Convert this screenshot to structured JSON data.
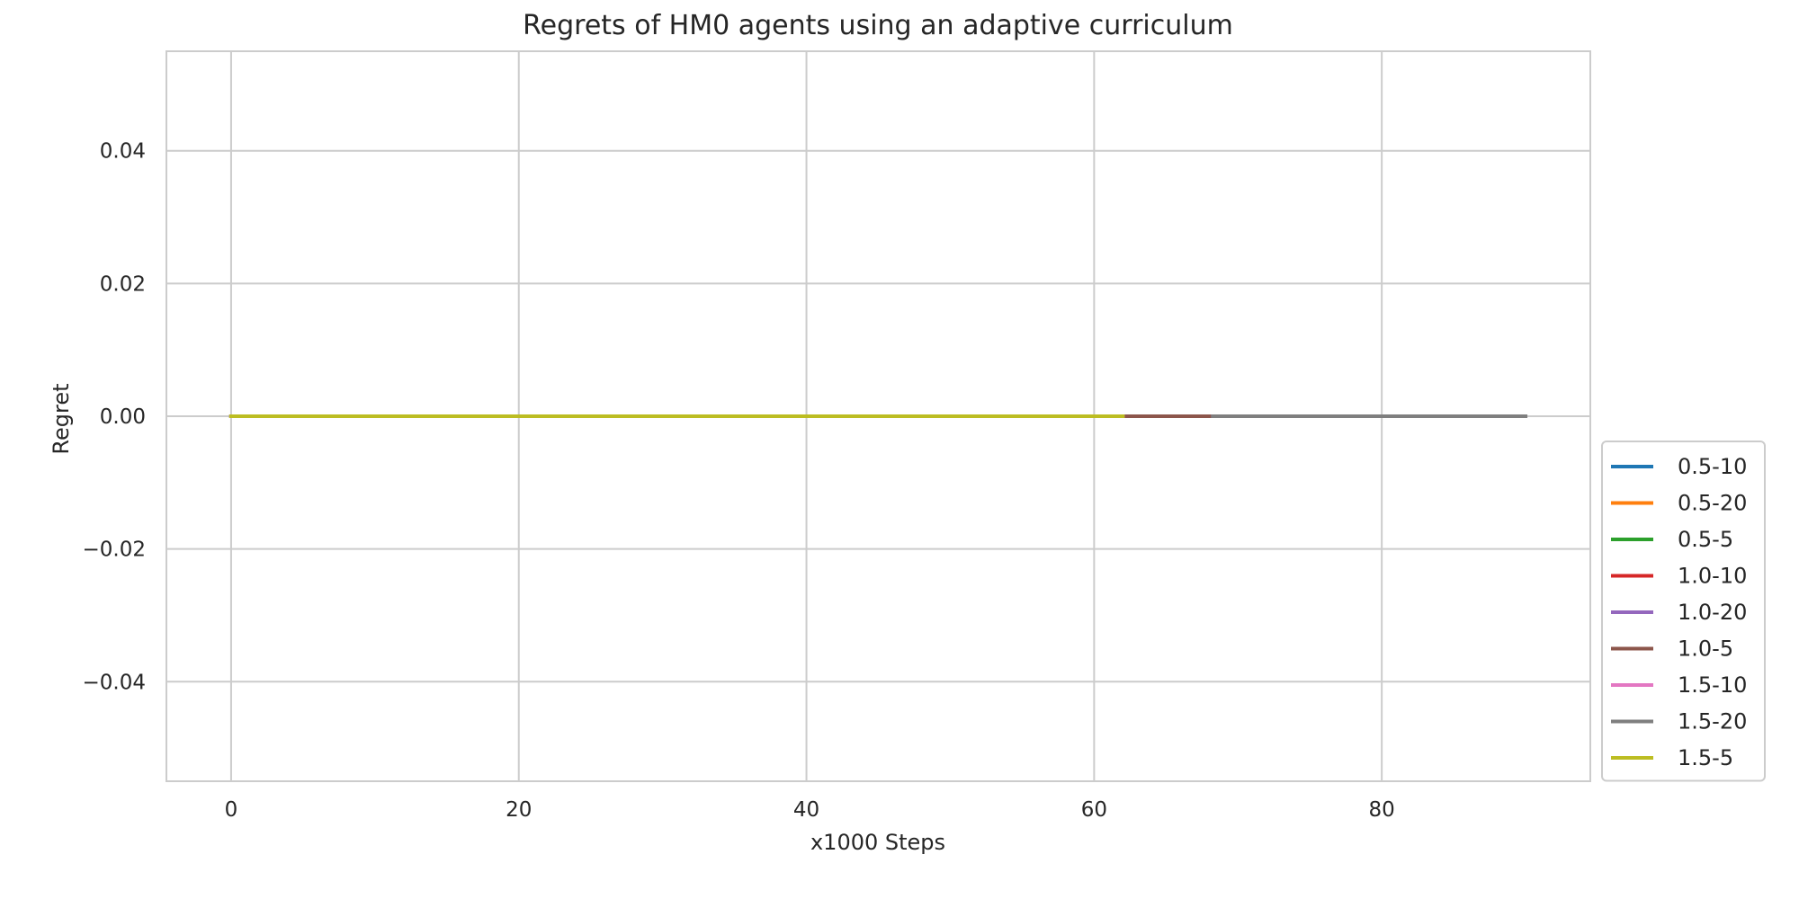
{
  "chart_data": {
    "type": "line",
    "title": "Regrets of HM0 agents using an adaptive curriculum",
    "xlabel": "x1000 Steps",
    "ylabel": "Regret",
    "xlim": [
      -4.5,
      94.5
    ],
    "ylim": [
      -0.055,
      0.055
    ],
    "xticks": [
      0,
      20,
      40,
      60,
      80
    ],
    "yticks": [
      -0.04,
      -0.02,
      0.0,
      0.02,
      0.04
    ],
    "xtick_labels": [
      "0",
      "20",
      "40",
      "60",
      "80"
    ],
    "ytick_labels": [
      "−0.04",
      "−0.02",
      "0.00",
      "0.02",
      "0.04"
    ],
    "grid": true,
    "legend_position": "right, lower",
    "series": [
      {
        "name": "0.5-10",
        "color": "#1f77b4",
        "x": [
          0,
          62
        ],
        "y": [
          0,
          0
        ]
      },
      {
        "name": "0.5-20",
        "color": "#ff7f0e",
        "x": [
          0,
          62
        ],
        "y": [
          0,
          0
        ]
      },
      {
        "name": "0.5-5",
        "color": "#2ca02c",
        "x": [
          0,
          62
        ],
        "y": [
          0,
          0
        ]
      },
      {
        "name": "1.0-10",
        "color": "#d62728",
        "x": [
          0,
          62
        ],
        "y": [
          0,
          0
        ]
      },
      {
        "name": "1.0-20",
        "color": "#9467bd",
        "x": [
          0,
          68
        ],
        "y": [
          0,
          0
        ]
      },
      {
        "name": "1.0-5",
        "color": "#8c564b",
        "x": [
          0,
          68
        ],
        "y": [
          0,
          0
        ]
      },
      {
        "name": "1.5-10",
        "color": "#e377c2",
        "x": [
          0,
          62
        ],
        "y": [
          0,
          0
        ]
      },
      {
        "name": "1.5-20",
        "color": "#7f7f7f",
        "x": [
          0,
          90
        ],
        "y": [
          0,
          0
        ]
      },
      {
        "name": "1.5-5",
        "color": "#bcbd22",
        "x": [
          0,
          62
        ],
        "y": [
          0,
          0
        ]
      }
    ]
  }
}
